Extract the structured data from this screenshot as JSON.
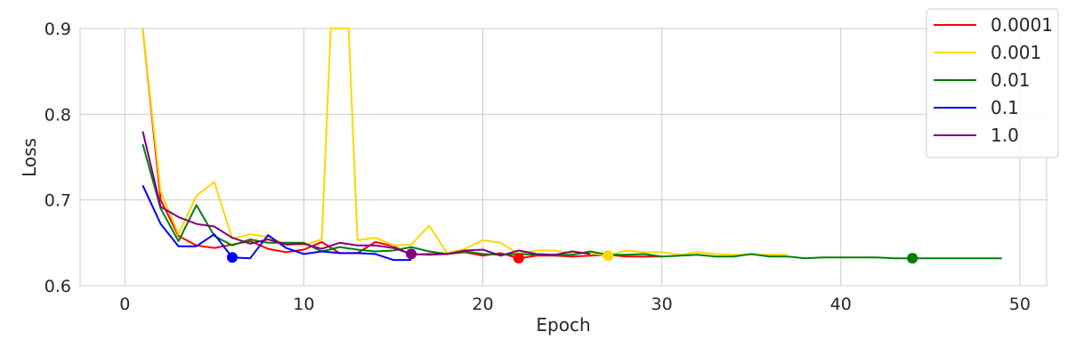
{
  "chart_data": {
    "type": "line",
    "title": "",
    "xlabel": "Epoch",
    "ylabel": "Loss",
    "xlim": [
      -2.5,
      51.5
    ],
    "ylim": [
      0.6,
      0.9
    ],
    "xticks": [
      0,
      10,
      20,
      30,
      40,
      50
    ],
    "yticks": [
      0.6,
      0.7,
      0.8,
      0.9
    ],
    "xtick_labels": [
      "0",
      "10",
      "20",
      "30",
      "40",
      "50"
    ],
    "ytick_labels": [
      "0.6",
      "0.7",
      "0.8",
      "0.9"
    ],
    "grid": true,
    "legend_position": "top-right",
    "series": [
      {
        "name": "0.0001",
        "color": "#ff0000",
        "x": [
          1,
          2,
          3,
          4,
          5,
          6,
          7,
          8,
          9,
          10,
          11,
          12,
          13,
          14,
          15,
          16,
          17,
          18,
          19,
          20,
          21,
          22,
          23,
          24,
          25,
          26,
          27,
          28,
          29,
          30
        ],
        "y": [
          0.9,
          0.7,
          0.658,
          0.647,
          0.644,
          0.648,
          0.652,
          0.643,
          0.639,
          0.642,
          0.651,
          0.638,
          0.638,
          0.651,
          0.646,
          0.636,
          0.637,
          0.637,
          0.639,
          0.635,
          0.638,
          0.632,
          0.635,
          0.635,
          0.634,
          0.635,
          0.636,
          0.634,
          0.634,
          0.634
        ],
        "best": {
          "x": 22,
          "y": 0.632
        }
      },
      {
        "name": "0.001",
        "color": "#ffd700",
        "x": [
          1,
          2,
          3,
          4,
          5,
          6,
          7,
          8,
          9,
          10,
          11,
          11.5,
          12.5,
          13,
          14,
          15,
          16,
          17,
          18,
          19,
          20,
          21,
          22,
          23,
          24,
          25,
          26,
          27,
          28,
          29,
          30,
          31,
          32,
          33,
          34,
          35,
          36,
          37
        ],
        "y": [
          0.9,
          0.71,
          0.66,
          0.705,
          0.721,
          0.655,
          0.66,
          0.657,
          0.648,
          0.647,
          0.654,
          0.9,
          0.9,
          0.653,
          0.656,
          0.647,
          0.648,
          0.67,
          0.638,
          0.643,
          0.653,
          0.65,
          0.637,
          0.641,
          0.641,
          0.638,
          0.638,
          0.635,
          0.641,
          0.639,
          0.639,
          0.636,
          0.639,
          0.637,
          0.636,
          0.636,
          0.636,
          0.636
        ],
        "best": {
          "x": 27,
          "y": 0.635
        }
      },
      {
        "name": "0.01",
        "color": "#008000",
        "x": [
          1,
          2,
          3,
          4,
          5,
          6,
          7,
          8,
          9,
          10,
          11,
          12,
          13,
          14,
          15,
          16,
          17,
          18,
          19,
          20,
          21,
          22,
          23,
          24,
          25,
          26,
          27,
          28,
          29,
          30,
          31,
          32,
          33,
          34,
          35,
          36,
          37,
          38,
          39,
          40,
          41,
          42,
          43,
          44,
          45,
          46,
          47,
          48,
          49
        ],
        "y": [
          0.765,
          0.69,
          0.652,
          0.694,
          0.658,
          0.647,
          0.654,
          0.65,
          0.65,
          0.65,
          0.64,
          0.645,
          0.642,
          0.64,
          0.641,
          0.645,
          0.64,
          0.637,
          0.64,
          0.637,
          0.636,
          0.637,
          0.636,
          0.636,
          0.636,
          0.64,
          0.636,
          0.636,
          0.637,
          0.634,
          0.635,
          0.636,
          0.634,
          0.634,
          0.637,
          0.634,
          0.634,
          0.632,
          0.633,
          0.633,
          0.633,
          0.633,
          0.632,
          0.632,
          0.632,
          0.632,
          0.632,
          0.632,
          0.632
        ],
        "best": {
          "x": 44,
          "y": 0.632
        }
      },
      {
        "name": "0.1",
        "color": "#0000ff",
        "x": [
          1,
          2,
          3,
          4,
          5,
          6,
          7,
          8,
          9,
          10,
          11,
          12,
          13,
          14,
          15,
          16
        ],
        "y": [
          0.717,
          0.672,
          0.646,
          0.646,
          0.66,
          0.633,
          0.632,
          0.659,
          0.644,
          0.637,
          0.64,
          0.638,
          0.638,
          0.637,
          0.63,
          0.63
        ],
        "best": {
          "x": 6,
          "y": 0.633
        }
      },
      {
        "name": "1.0",
        "color": "#800080",
        "x": [
          1,
          2,
          3,
          4,
          5,
          6,
          7,
          8,
          9,
          10,
          11,
          12,
          13,
          14,
          15,
          16,
          17,
          18,
          19,
          20,
          21,
          22,
          23,
          24,
          25,
          26
        ],
        "y": [
          0.78,
          0.692,
          0.68,
          0.672,
          0.669,
          0.656,
          0.649,
          0.654,
          0.648,
          0.649,
          0.643,
          0.65,
          0.647,
          0.647,
          0.644,
          0.637,
          0.636,
          0.637,
          0.641,
          0.642,
          0.635,
          0.641,
          0.637,
          0.636,
          0.64,
          0.637
        ],
        "best": {
          "x": 16,
          "y": 0.637
        }
      }
    ]
  }
}
